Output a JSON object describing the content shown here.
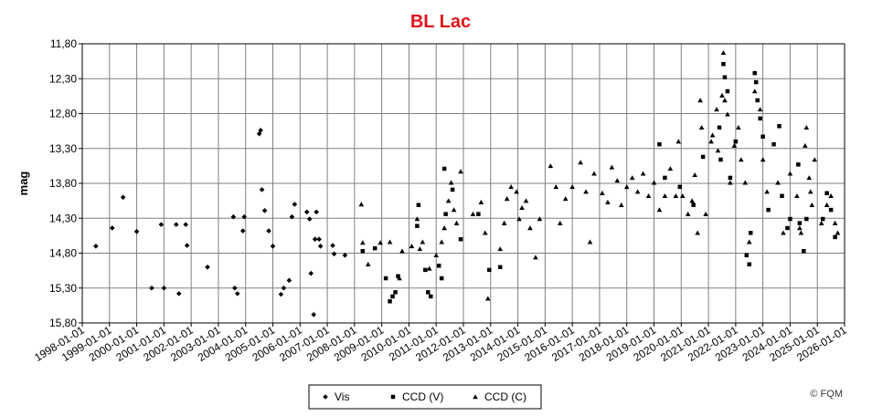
{
  "chart_data": {
    "type": "scatter",
    "title": "BL Lac",
    "ylabel": "mag",
    "copyright": "© FQM",
    "yreverse": true,
    "grid": true,
    "legend": "bottom",
    "xlim": [
      1998,
      2026
    ],
    "xticks": [
      {
        "value": 1998,
        "label": "1998-01-01"
      },
      {
        "value": 1999,
        "label": "1999-01-01"
      },
      {
        "value": 2000,
        "label": "2000-01-01"
      },
      {
        "value": 2001,
        "label": "2001-01-01"
      },
      {
        "value": 2002,
        "label": "2002-01-01"
      },
      {
        "value": 2003,
        "label": "2003-01-01"
      },
      {
        "value": 2004,
        "label": "2004-01-01"
      },
      {
        "value": 2005,
        "label": "2005-01-01"
      },
      {
        "value": 2006,
        "label": "2006-01-01"
      },
      {
        "value": 2007,
        "label": "2007-01-01"
      },
      {
        "value": 2008,
        "label": "2008-01-01"
      },
      {
        "value": 2009,
        "label": "2009-01-01"
      },
      {
        "value": 2010,
        "label": "2010-01-01"
      },
      {
        "value": 2011,
        "label": "2011-01-01"
      },
      {
        "value": 2012,
        "label": "2012-01-01"
      },
      {
        "value": 2013,
        "label": "2013-01-01"
      },
      {
        "value": 2014,
        "label": "2014-01-01"
      },
      {
        "value": 2015,
        "label": "2015-01-01"
      },
      {
        "value": 2016,
        "label": "2016-01-01"
      },
      {
        "value": 2017,
        "label": "2017-01-01"
      },
      {
        "value": 2018,
        "label": "2018-01-01"
      },
      {
        "value": 2019,
        "label": "2019-01-01"
      },
      {
        "value": 2020,
        "label": "2020-01-01"
      },
      {
        "value": 2021,
        "label": "2021-01-01"
      },
      {
        "value": 2022,
        "label": "2022-01-01"
      },
      {
        "value": 2023,
        "label": "2023-01-01"
      },
      {
        "value": 2024,
        "label": "2024-01-01"
      },
      {
        "value": 2025,
        "label": "2025-01-01"
      },
      {
        "value": 2026,
        "label": "2026-01-01"
      }
    ],
    "ylim": [
      11.8,
      15.8
    ],
    "yticks": [
      {
        "value": 11.8,
        "label": "11,80"
      },
      {
        "value": 12.3,
        "label": "12,30"
      },
      {
        "value": 12.8,
        "label": "12,80"
      },
      {
        "value": 13.3,
        "label": "13,30"
      },
      {
        "value": 13.8,
        "label": "13,80"
      },
      {
        "value": 14.3,
        "label": "14,30"
      },
      {
        "value": 14.8,
        "label": "14,80"
      },
      {
        "value": 15.3,
        "label": "15,30"
      },
      {
        "value": 15.8,
        "label": "15,80"
      }
    ],
    "series": [
      {
        "name": "Vis",
        "color": "#000000",
        "marker": "diamond",
        "x": [
          1998.5,
          1999.1,
          1999.5,
          2000.0,
          2000.55,
          2000.9,
          2001.0,
          2001.45,
          2001.55,
          2001.8,
          2001.85,
          2002.6,
          2003.55,
          2003.6,
          2003.7,
          2003.9,
          2003.95,
          2004.5,
          2004.55,
          2004.6,
          2004.7,
          2004.85,
          2005.0,
          2005.3,
          2005.4,
          2005.6,
          2005.7,
          2005.8,
          2006.25,
          2006.35,
          2006.4,
          2006.5,
          2006.55,
          2006.6,
          2006.7,
          2006.75,
          2007.2,
          2007.25,
          2007.65
        ],
        "values": [
          14.7,
          14.44,
          14.0,
          14.49,
          15.3,
          14.39,
          15.3,
          14.39,
          15.38,
          14.39,
          14.69,
          15.0,
          14.28,
          15.3,
          15.38,
          14.48,
          14.28,
          13.09,
          13.04,
          13.89,
          14.19,
          14.48,
          14.7,
          15.39,
          15.3,
          15.19,
          14.28,
          14.1,
          14.21,
          14.31,
          15.09,
          15.68,
          14.6,
          14.21,
          14.6,
          14.7,
          14.69,
          14.81,
          14.83
        ]
      },
      {
        "name": "CCD (V)",
        "color": "#000000",
        "marker": "square",
        "x": [
          2008.3,
          2008.75,
          2009.15,
          2009.3,
          2009.4,
          2009.5,
          2009.6,
          2010.3,
          2010.35,
          2010.6,
          2010.7,
          2010.8,
          2011.1,
          2011.2,
          2011.3,
          2011.35,
          2011.6,
          2011.9,
          2012.55,
          2012.95,
          2013.35,
          2019.2,
          2019.4,
          2019.95,
          2020.45,
          2020.8,
          2021.4,
          2021.45,
          2021.55,
          2021.6,
          2021.7,
          2021.8,
          2022.0,
          2022.4,
          2022.5,
          2022.55,
          2022.7,
          2022.75,
          2022.8,
          2022.9,
          2023.0,
          2023.2,
          2023.4,
          2023.6,
          2023.7,
          2023.9,
          2024.0,
          2024.3,
          2024.35,
          2024.5,
          2024.6,
          2025.2,
          2025.35,
          2025.5,
          2025.65
        ],
        "values": [
          14.77,
          14.73,
          15.16,
          15.49,
          15.42,
          15.36,
          15.13,
          14.41,
          14.11,
          15.04,
          15.36,
          15.42,
          14.98,
          15.16,
          13.59,
          14.24,
          13.89,
          14.6,
          14.24,
          15.04,
          15.0,
          13.24,
          13.72,
          13.85,
          14.11,
          13.42,
          13.0,
          13.46,
          12.09,
          12.28,
          12.48,
          13.72,
          13.2,
          14.83,
          14.96,
          14.51,
          12.22,
          12.35,
          12.61,
          12.87,
          13.13,
          14.18,
          13.24,
          12.98,
          13.98,
          14.44,
          14.31,
          13.53,
          14.37,
          14.77,
          14.31,
          14.31,
          13.94,
          14.18,
          14.57
        ]
      },
      {
        "name": "CCD (C)",
        "color": "#000000",
        "marker": "triangle",
        "x": [
          2008.25,
          2008.3,
          2008.5,
          2008.95,
          2009.3,
          2009.65,
          2009.75,
          2010.1,
          2010.3,
          2010.4,
          2010.5,
          2010.75,
          2011.0,
          2011.2,
          2011.3,
          2011.45,
          2011.55,
          2011.65,
          2011.75,
          2011.9,
          2012.35,
          2012.65,
          2012.8,
          2012.9,
          2013.35,
          2013.5,
          2013.6,
          2013.75,
          2013.95,
          2014.05,
          2014.15,
          2014.3,
          2014.45,
          2014.65,
          2014.8,
          2015.2,
          2015.4,
          2015.55,
          2015.75,
          2016.0,
          2016.3,
          2016.5,
          2016.65,
          2016.8,
          2017.1,
          2017.3,
          2017.45,
          2017.65,
          2017.8,
          2018.0,
          2018.2,
          2018.4,
          2018.6,
          2018.8,
          2019.0,
          2019.2,
          2019.4,
          2019.6,
          2019.8,
          2019.9,
          2020.05,
          2020.25,
          2020.4,
          2020.5,
          2020.6,
          2020.7,
          2020.75,
          2020.9,
          2021.1,
          2021.15,
          2021.3,
          2021.35,
          2021.5,
          2021.55,
          2021.6,
          2021.7,
          2021.8,
          2021.95,
          2022.1,
          2022.2,
          2022.35,
          2022.5,
          2022.7,
          2022.9,
          2023.0,
          2023.15,
          2023.55,
          2023.75,
          2024.0,
          2024.25,
          2024.35,
          2024.4,
          2024.55,
          2024.6,
          2024.7,
          2024.75,
          2024.8,
          2024.9,
          2025.15,
          2025.35,
          2025.5,
          2025.65,
          2025.75
        ],
        "values": [
          14.1,
          14.65,
          14.96,
          14.65,
          14.64,
          15.16,
          14.77,
          14.7,
          14.31,
          14.74,
          14.64,
          15.02,
          14.83,
          14.64,
          14.44,
          14.05,
          13.79,
          14.18,
          14.37,
          13.63,
          14.24,
          14.07,
          14.51,
          15.45,
          14.74,
          14.37,
          14.02,
          13.85,
          13.92,
          14.31,
          14.15,
          14.05,
          14.44,
          14.86,
          14.31,
          13.55,
          13.85,
          14.37,
          14.02,
          13.85,
          13.5,
          13.92,
          14.64,
          13.66,
          13.94,
          14.07,
          13.57,
          13.76,
          14.11,
          13.85,
          13.72,
          13.92,
          13.66,
          13.98,
          13.79,
          14.18,
          13.98,
          13.59,
          13.98,
          13.2,
          13.98,
          14.24,
          14.05,
          13.68,
          14.51,
          12.61,
          13.0,
          14.24,
          13.2,
          13.11,
          12.74,
          13.33,
          12.54,
          11.93,
          12.61,
          12.81,
          13.79,
          13.26,
          13.0,
          13.46,
          13.79,
          14.64,
          12.48,
          12.74,
          13.46,
          13.92,
          13.79,
          14.51,
          13.66,
          13.98,
          14.44,
          14.51,
          13.26,
          13.0,
          13.72,
          13.92,
          14.11,
          13.46,
          14.37,
          14.11,
          13.98,
          14.37,
          14.51
        ]
      }
    ]
  }
}
